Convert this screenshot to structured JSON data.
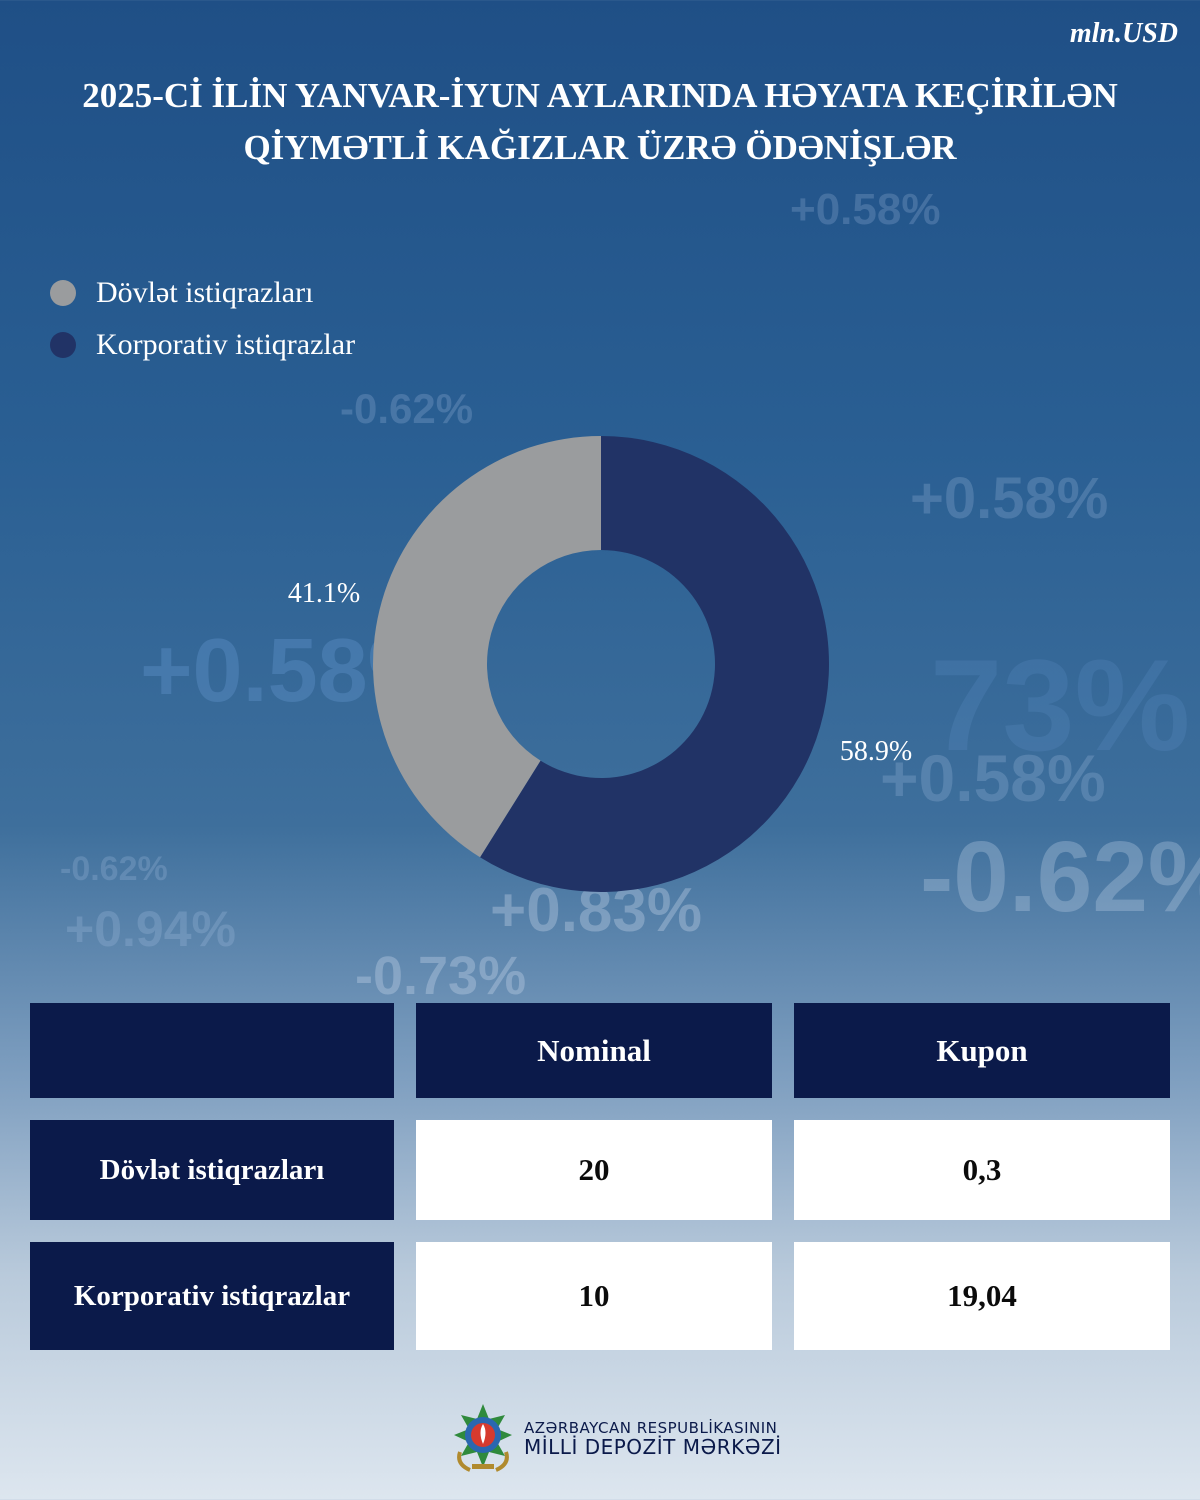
{
  "unit": "mln.USD",
  "title": {
    "line1": "2025-Cİ İLİN YANVAR-İYUN AYLARINDA HƏYATA KEÇİRİLƏN",
    "line2": "QİYMƏTLİ KAĞIZLAR ÜZRƏ ÖDƏNİŞLƏR"
  },
  "colors": {
    "dovlet": "#9a9c9e",
    "korporativ": "#213366",
    "table_dark": "#0b1a4a"
  },
  "chart_data": {
    "type": "pie",
    "series": [
      {
        "name": "Dövlət istiqrazları",
        "value": 41.1,
        "label": "41.1%"
      },
      {
        "name": "Korporativ istiqrazlar",
        "value": 58.9,
        "label": "58.9%"
      }
    ],
    "legend": "top-left"
  },
  "table": {
    "headers": [
      "",
      "Nominal",
      "Kupon"
    ],
    "rows": [
      {
        "label": "Dövlət istiqrazları",
        "nominal": "20",
        "kupon": "0,3"
      },
      {
        "label": "Korporativ istiqrazlar",
        "nominal": "10",
        "kupon": "19,04"
      }
    ]
  },
  "footer": {
    "logo_icon": "azerbaijan-emblem-icon",
    "line1": "AZƏRBAYCAN RESPUBLİKASININ",
    "line2": "MİLLİ DEPOZİT MƏRKƏZİ"
  }
}
